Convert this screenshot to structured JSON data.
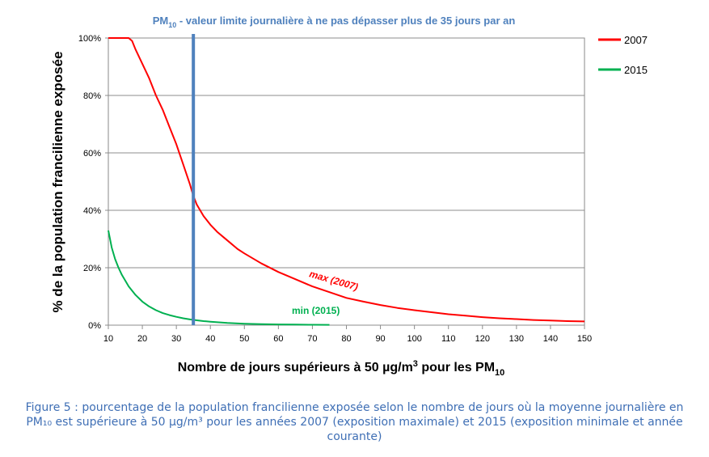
{
  "chart_data": {
    "type": "line",
    "title": {
      "pre": "PM",
      "sub": "10",
      "post": " - valeur limite journalière à ne pas dépasser plus de 35 jours par an"
    },
    "xlabel": {
      "pre": "Nombre de jours supérieurs à 50 µg/m",
      "sup": "3",
      "mid": " pour les PM",
      "sub": "10"
    },
    "ylabel": "% de la population francilienne exposée",
    "xlim": [
      10,
      150
    ],
    "ylim": [
      0,
      100
    ],
    "x_ticks": [
      10,
      20,
      30,
      40,
      50,
      60,
      70,
      80,
      90,
      100,
      110,
      120,
      130,
      140,
      150
    ],
    "y_ticks": [
      0,
      20,
      40,
      60,
      80,
      100
    ],
    "y_tick_labels": [
      "0%",
      "20%",
      "40%",
      "60%",
      "80%",
      "100%"
    ],
    "grid": true,
    "legend_position": "top-right",
    "limit_line": {
      "x": 35,
      "color": "#4f81bd"
    },
    "series": [
      {
        "name": "2007",
        "color": "#ff0000",
        "annotation": "max (2007)",
        "x": [
          10,
          12,
          14,
          16,
          17,
          18,
          20,
          22,
          24,
          26,
          28,
          30,
          32,
          34,
          35,
          36,
          38,
          40,
          42,
          44,
          46,
          48,
          50,
          55,
          60,
          65,
          70,
          75,
          80,
          85,
          90,
          95,
          100,
          105,
          110,
          115,
          120,
          125,
          130,
          135,
          140,
          145,
          150
        ],
        "values": [
          100,
          100,
          100,
          100,
          99,
          96,
          91,
          86,
          80,
          75,
          69,
          63,
          56,
          49,
          45,
          42,
          38,
          35,
          32.5,
          30.5,
          28.5,
          26.5,
          25,
          21.5,
          18.5,
          16,
          13.5,
          11.5,
          9.5,
          8.2,
          7,
          6,
          5.2,
          4.5,
          3.8,
          3.3,
          2.8,
          2.4,
          2.1,
          1.8,
          1.6,
          1.4,
          1.3
        ]
      },
      {
        "name": "2015",
        "color": "#00b050",
        "annotation": "min (2015)",
        "x": [
          10,
          11,
          12,
          13,
          14,
          15,
          16,
          18,
          20,
          22,
          24,
          26,
          28,
          30,
          32,
          34,
          36,
          38,
          40,
          45,
          50,
          55,
          60,
          65,
          70,
          75
        ],
        "values": [
          33,
          27,
          23,
          20,
          17.5,
          15.5,
          13.5,
          10.5,
          8.2,
          6.5,
          5.2,
          4.2,
          3.5,
          2.9,
          2.4,
          2.0,
          1.7,
          1.4,
          1.2,
          0.8,
          0.5,
          0.35,
          0.25,
          0.2,
          0.15,
          0.1
        ]
      }
    ]
  },
  "caption": {
    "line1": "Figure 5 : pourcentage de la population francilienne exposée selon le nombre de jours où la moyenne journalière en",
    "line2": "PM₁₀ est supérieure à 50 µg/m³ pour les années 2007 (exposition maximale) et 2015 (exposition minimale et année",
    "line3": "courante)"
  }
}
